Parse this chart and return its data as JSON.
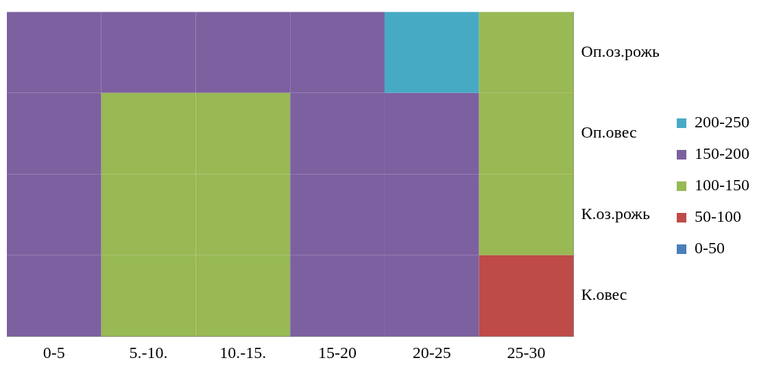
{
  "chart_data": {
    "type": "heatmap",
    "categories": [
      "0-5",
      "5.-10.",
      "10.-15.",
      "15-20",
      "20-25",
      "25-30"
    ],
    "y_categories": [
      "Оп.оз.рожь",
      "Оп.овес",
      "К.оз.рожь",
      "К.овес"
    ],
    "cells": [
      [
        175,
        175,
        175,
        175,
        225,
        125
      ],
      [
        175,
        125,
        125,
        175,
        175,
        125
      ],
      [
        175,
        125,
        125,
        175,
        175,
        125
      ],
      [
        175,
        125,
        125,
        175,
        175,
        75
      ]
    ],
    "cticks": [
      {
        "value": 25,
        "label": "0-50"
      },
      {
        "value": 75,
        "label": "50-100"
      },
      {
        "value": 125,
        "label": "100-150"
      },
      {
        "value": 175,
        "label": "150-200"
      },
      {
        "value": 225,
        "label": "200-250"
      }
    ],
    "colors": [
      "#4a7ebb",
      "#be4b48",
      "#98b954",
      "#7d60a0",
      "#46aac5"
    ]
  }
}
